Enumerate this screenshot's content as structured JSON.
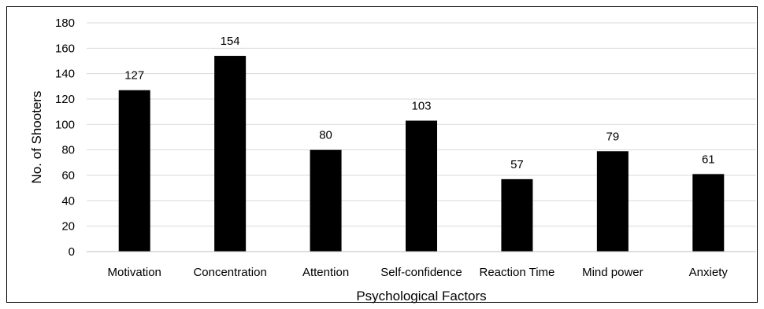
{
  "chart_data": {
    "type": "bar",
    "title": "",
    "xlabel": "Psychological Factors",
    "ylabel": "No. of Shooters",
    "categories": [
      "Motivation",
      "Concentration",
      "Attention",
      "Self-confidence",
      "Reaction Time",
      "Mind power",
      "Anxiety"
    ],
    "values": [
      127,
      154,
      80,
      103,
      57,
      79,
      61
    ],
    "ylim": [
      0,
      180
    ],
    "yticks": [
      0,
      20,
      40,
      60,
      80,
      100,
      120,
      140,
      160,
      180
    ],
    "grid": true,
    "legend": "none",
    "bar_color": "#000000"
  }
}
